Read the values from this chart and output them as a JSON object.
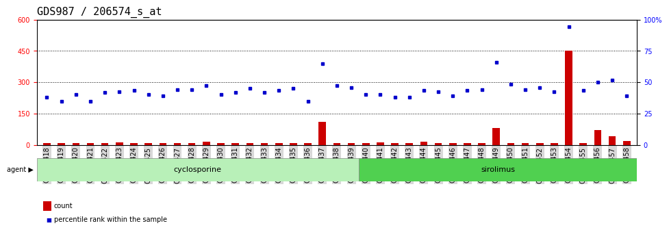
{
  "title": "GDS987 / 206574_s_at",
  "samples": [
    "GSM30418",
    "GSM30419",
    "GSM30420",
    "GSM30421",
    "GSM30422",
    "GSM30423",
    "GSM30424",
    "GSM30425",
    "GSM30426",
    "GSM30427",
    "GSM30428",
    "GSM30429",
    "GSM30430",
    "GSM30431",
    "GSM30432",
    "GSM30433",
    "GSM30434",
    "GSM30435",
    "GSM30436",
    "GSM30437",
    "GSM30438",
    "GSM30439",
    "GSM30440",
    "GSM30441",
    "GSM30442",
    "GSM30443",
    "GSM30444",
    "GSM30445",
    "GSM30446",
    "GSM30447",
    "GSM30448",
    "GSM30449",
    "GSM30450",
    "GSM30451",
    "GSM30452",
    "GSM30453",
    "GSM30454",
    "GSM30455",
    "GSM30456",
    "GSM30457",
    "GSM30458"
  ],
  "count": [
    10,
    10,
    10,
    10,
    10,
    12,
    10,
    10,
    10,
    10,
    10,
    15,
    10,
    10,
    10,
    10,
    10,
    10,
    10,
    110,
    10,
    10,
    10,
    12,
    10,
    10,
    15,
    10,
    10,
    10,
    10,
    80,
    10,
    10,
    10,
    10,
    450,
    10,
    70,
    40,
    20
  ],
  "percentile": [
    230,
    210,
    240,
    210,
    250,
    255,
    260,
    240,
    235,
    265,
    265,
    285,
    240,
    250,
    270,
    250,
    260,
    270,
    210,
    390,
    285,
    275,
    240,
    240,
    230,
    230,
    260,
    255,
    235,
    260,
    265,
    395,
    290,
    265,
    275,
    255,
    565,
    260,
    300,
    310,
    235
  ],
  "cyclosporine_count": 22,
  "sirolimus_count": 19,
  "ylim_left": [
    0,
    600
  ],
  "ylim_right": [
    0,
    600
  ],
  "yticks_left": [
    0,
    150,
    300,
    450,
    600
  ],
  "yticks_right_vals": [
    0,
    150,
    300,
    450,
    600
  ],
  "yticks_right_labels": [
    "0",
    "25",
    "50",
    "75",
    "100%"
  ],
  "bar_color": "#cc0000",
  "dot_color": "#0000cc",
  "cyclosporine_color": "#b8f0b8",
  "sirolimus_color": "#50d050",
  "background_color": "#ffffff",
  "tick_fontsize": 7,
  "title_fontsize": 11
}
